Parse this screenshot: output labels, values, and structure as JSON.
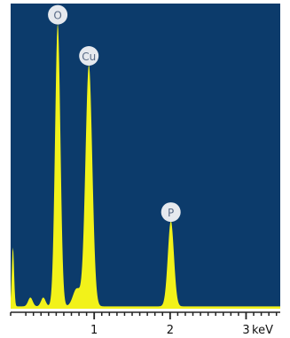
{
  "chart_data": {
    "type": "area",
    "title": "",
    "xlabel": "keV",
    "ylabel": "",
    "xlim": [
      -0.1,
      3.45
    ],
    "ylim": [
      0,
      1
    ],
    "grid": false,
    "x_ticks": [
      {
        "value": 1,
        "label": "1"
      },
      {
        "value": 2,
        "label": "2"
      },
      {
        "value": 3,
        "label": "3"
      }
    ],
    "colors": {
      "background": "#0c3b6b",
      "spectrum": "#f2f21a",
      "frame": "#ffffff",
      "label_fill": "#e6e9ee",
      "label_text": "#5a6b86"
    },
    "series": [
      {
        "peaks": [
          {
            "element": "",
            "energy_kev": -0.07,
            "height": 0.2,
            "sigma": 0.015
          },
          {
            "element": "",
            "energy_kev": 0.16,
            "height": 0.03,
            "sigma": 0.03
          },
          {
            "element": "O",
            "energy_kev": 0.52,
            "height": 0.96,
            "sigma": 0.035
          },
          {
            "element": "",
            "energy_kev": 0.33,
            "height": 0.03,
            "sigma": 0.03
          },
          {
            "element": "",
            "energy_kev": 0.77,
            "height": 0.06,
            "sigma": 0.05
          },
          {
            "element": "Cu",
            "energy_kev": 0.93,
            "height": 0.82,
            "sigma": 0.045
          },
          {
            "element": "P",
            "energy_kev": 2.01,
            "height": 0.29,
            "sigma": 0.04
          }
        ],
        "baseline": 0.008
      }
    ],
    "annotations": [
      {
        "text": "O",
        "energy_kev": 0.52
      },
      {
        "text": "Cu",
        "energy_kev": 0.93
      },
      {
        "text": "P",
        "energy_kev": 2.01
      }
    ]
  }
}
